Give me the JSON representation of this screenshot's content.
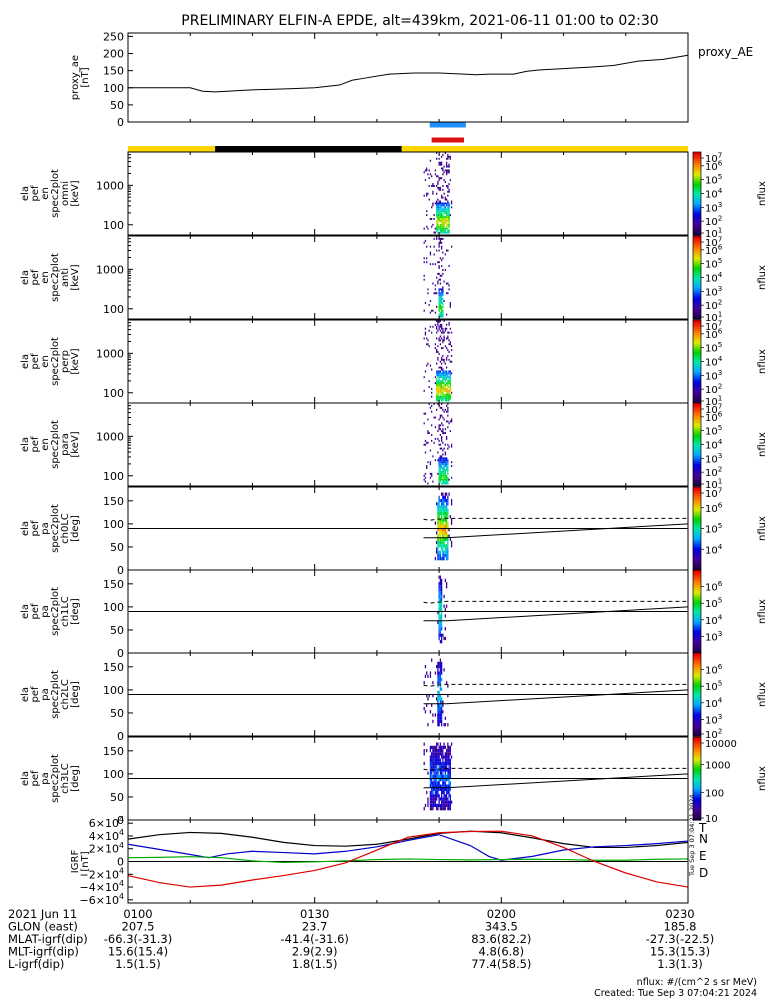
{
  "title": "PRELIMINARY ELFIN-A EPDE, alt=439km, 2021-06-11 01:00 to 02:30",
  "colors": {
    "background": "#ffffff",
    "axis": "#000000",
    "sunlight_bar": "#ffd700",
    "shadow_bar": "#000000",
    "science_zone_blue": "#1e90ff",
    "science_zone_red": "#dd1111",
    "igrf_total": "#000000",
    "igrf_north": "#0000cc",
    "igrf_east": "#00aa00",
    "igrf_down": "#dd0000"
  },
  "chart_data": [
    {
      "type": "line",
      "ylabel": [
        "proxy_ae",
        "[nT]"
      ],
      "ylim": [
        0,
        260
      ],
      "yticks": [
        0,
        50,
        100,
        150,
        200,
        250
      ],
      "legend": "proxy_AE",
      "series": [
        {
          "name": "proxy_AE",
          "x": [
            0,
            5,
            8,
            10,
            12,
            14,
            16,
            18,
            20,
            22,
            24,
            26,
            30,
            34,
            36,
            38,
            42,
            46,
            50,
            54,
            56,
            58,
            62,
            64,
            66,
            70,
            72,
            74,
            78,
            82,
            86,
            90
          ],
          "y": [
            100,
            100,
            100,
            100,
            90,
            88,
            90,
            92,
            94,
            95,
            96,
            97,
            100,
            108,
            122,
            128,
            140,
            143,
            143,
            140,
            138,
            140,
            140,
            148,
            152,
            156,
            158,
            160,
            165,
            178,
            183,
            195
          ]
        }
      ]
    },
    {
      "type": "heatmap",
      "ylabel": [
        "ela",
        "pef",
        "en",
        "spec2plot",
        "omni",
        "[keV]"
      ],
      "yscale": "log",
      "ylim": [
        55,
        7000
      ],
      "yticks": [
        100,
        1000
      ],
      "colorbar": {
        "label": "nflux",
        "scale": "log",
        "range": [
          10,
          10000000
        ],
        "tick_labels": [
          [
            "10",
            "1"
          ],
          [
            "10",
            "2"
          ],
          [
            "10",
            "3"
          ],
          [
            "10",
            "4"
          ],
          [
            "10",
            "5"
          ],
          [
            "10",
            "6"
          ],
          [
            "10",
            "7"
          ]
        ]
      },
      "activity_window_min": [
        47.5,
        52.0
      ],
      "core": {
        "x0": 49.5,
        "x1": 51.6,
        "energy_peak_keV": 110,
        "level": 0.7
      }
    },
    {
      "type": "heatmap",
      "ylabel": [
        "ela",
        "pef",
        "en",
        "spec2plot",
        "anti",
        "[keV]"
      ],
      "yscale": "log",
      "ylim": [
        55,
        7000
      ],
      "yticks": [
        100,
        1000
      ],
      "colorbar": {
        "label": "nflux",
        "scale": "log",
        "range": [
          10,
          10000000
        ],
        "tick_labels": [
          [
            "10",
            "1"
          ],
          [
            "10",
            "2"
          ],
          [
            "10",
            "3"
          ],
          [
            "10",
            "4"
          ],
          [
            "10",
            "5"
          ],
          [
            "10",
            "6"
          ],
          [
            "10",
            "7"
          ]
        ]
      },
      "activity_window_min": [
        47.5,
        52.0
      ],
      "core": {
        "x0": 49.8,
        "x1": 50.6,
        "energy_peak_keV": 100,
        "level": 0.55
      }
    },
    {
      "type": "heatmap",
      "ylabel": [
        "ela",
        "pef",
        "en",
        "spec2plot",
        "perp",
        "[keV]"
      ],
      "yscale": "log",
      "ylim": [
        55,
        7000
      ],
      "yticks": [
        100,
        1000
      ],
      "colorbar": {
        "label": "nflux",
        "scale": "log",
        "range": [
          10,
          10000000
        ],
        "tick_labels": [
          [
            "10",
            "1"
          ],
          [
            "10",
            "2"
          ],
          [
            "10",
            "3"
          ],
          [
            "10",
            "4"
          ],
          [
            "10",
            "5"
          ],
          [
            "10",
            "6"
          ],
          [
            "10",
            "7"
          ]
        ]
      },
      "activity_window_min": [
        47.5,
        52.0
      ],
      "core": {
        "x0": 49.5,
        "x1": 51.8,
        "energy_peak_keV": 110,
        "level": 0.72
      }
    },
    {
      "type": "heatmap",
      "ylabel": [
        "ela",
        "pef",
        "en",
        "spec2plot",
        "para",
        "[keV]"
      ],
      "yscale": "log",
      "ylim": [
        55,
        7000
      ],
      "yticks": [
        100,
        1000
      ],
      "colorbar": {
        "label": "nflux",
        "scale": "log",
        "range": [
          10,
          10000000
        ],
        "tick_labels": [
          [
            "10",
            "1"
          ],
          [
            "10",
            "2"
          ],
          [
            "10",
            "3"
          ],
          [
            "10",
            "4"
          ],
          [
            "10",
            "5"
          ],
          [
            "10",
            "6"
          ],
          [
            "10",
            "7"
          ]
        ]
      },
      "activity_window_min": [
        47.5,
        52.0
      ],
      "core": {
        "x0": 49.8,
        "x1": 51.5,
        "energy_peak_keV": 90,
        "level": 0.55
      }
    },
    {
      "type": "heatmap",
      "ylabel": [
        "ela",
        "pef",
        "pa",
        "spec2plot",
        "ch0LC",
        "[deg]"
      ],
      "yscale": "linear",
      "ylim": [
        0,
        180
      ],
      "yticks": [
        0,
        50,
        100,
        150
      ],
      "colorbar": {
        "label": "nflux",
        "scale": "log",
        "range": [
          1000,
          10000000
        ],
        "tick_labels": [
          [
            "10",
            "4"
          ],
          [
            "10",
            "5"
          ],
          [
            "10",
            "6"
          ],
          [
            "10",
            "7"
          ]
        ]
      },
      "activity_window_min": [
        49.3,
        52.0
      ],
      "core": {
        "x0": 49.6,
        "x1": 51.5,
        "level": 0.75
      },
      "lc_solid": {
        "x": [
          47.5,
          50.0,
          51.2,
          90
        ],
        "y": [
          70,
          70,
          70,
          100
        ]
      },
      "lc_dashed": {
        "x": [
          47.5,
          48.5,
          51.0,
          90
        ],
        "y": [
          110,
          108,
          112,
          112
        ]
      }
    },
    {
      "type": "heatmap",
      "ylabel": [
        "ela",
        "pef",
        "pa",
        "spec2plot",
        "ch1LC",
        "[deg]"
      ],
      "yscale": "linear",
      "ylim": [
        0,
        180
      ],
      "yticks": [
        0,
        50,
        100,
        150
      ],
      "colorbar": {
        "label": "nflux",
        "scale": "log",
        "range": [
          100,
          10000000
        ],
        "tick_labels": [
          [
            "10",
            "3"
          ],
          [
            "10",
            "4"
          ],
          [
            "10",
            "5"
          ],
          [
            "10",
            "6"
          ]
        ]
      },
      "activity_window_min": [
        49.5,
        51.2
      ],
      "core": {
        "x0": 49.8,
        "x1": 50.5,
        "level": 0.45
      },
      "lc_solid": {
        "x": [
          47.5,
          50.0,
          51.2,
          90
        ],
        "y": [
          70,
          70,
          70,
          100
        ]
      },
      "lc_dashed": {
        "x": [
          47.5,
          48.5,
          51.0,
          90
        ],
        "y": [
          110,
          108,
          112,
          112
        ]
      }
    },
    {
      "type": "heatmap",
      "ylabel": [
        "ela",
        "pef",
        "pa",
        "spec2plot",
        "ch2LC",
        "[deg]"
      ],
      "yscale": "linear",
      "ylim": [
        0,
        180
      ],
      "yticks": [
        0,
        50,
        100,
        150
      ],
      "colorbar": {
        "label": "nflux",
        "scale": "log",
        "range": [
          100,
          10000000
        ],
        "tick_labels": [
          [
            "10",
            "2"
          ],
          [
            "10",
            "3"
          ],
          [
            "10",
            "4"
          ],
          [
            "10",
            "5"
          ],
          [
            "10",
            "6"
          ]
        ]
      },
      "activity_window_min": [
        47.5,
        51.5
      ],
      "core": {
        "x0": 49.7,
        "x1": 50.4,
        "level": 0.35
      },
      "lc_solid": {
        "x": [
          47.5,
          50.0,
          51.2,
          90
        ],
        "y": [
          70,
          70,
          70,
          100
        ]
      },
      "lc_dashed": {
        "x": [
          47.5,
          48.5,
          51.0,
          90
        ],
        "y": [
          110,
          108,
          112,
          112
        ]
      }
    },
    {
      "type": "heatmap",
      "ylabel": [
        "ela",
        "pef",
        "pa",
        "spec2plot",
        "ch3LC",
        "[deg]"
      ],
      "yscale": "linear",
      "ylim": [
        0,
        180
      ],
      "yticks": [
        0,
        50,
        100,
        150
      ],
      "colorbar": {
        "label": "nflux",
        "scale": "log",
        "range": [
          10,
          10000
        ],
        "tick_labels": [
          [
            "10000",
            ""
          ],
          [
            "1000",
            ""
          ],
          [
            "100",
            ""
          ],
          [
            "10",
            ""
          ]
        ]
      },
      "activity_window_min": [
        47.5,
        52.0
      ],
      "core": {
        "x0": 48.5,
        "x1": 51.8,
        "level": 0.25
      },
      "lc_solid": {
        "x": [
          47.5,
          50.0,
          51.2,
          90
        ],
        "y": [
          70,
          70,
          70,
          100
        ]
      },
      "lc_dashed": {
        "x": [
          47.5,
          48.5,
          51.0,
          90
        ],
        "y": [
          110,
          108,
          112,
          112
        ]
      }
    },
    {
      "type": "line",
      "ylabel": [
        "IGRF",
        "[nT]"
      ],
      "ylim": [
        -65000,
        65000
      ],
      "ytick_labels": [
        {
          "v": 60000,
          "m": "6",
          "e": "4",
          "s": ""
        },
        {
          "v": 40000,
          "m": "4",
          "e": "4",
          "s": ""
        },
        {
          "v": 20000,
          "m": "2",
          "e": "4",
          "s": ""
        },
        {
          "v": 0,
          "m": "0",
          "e": "",
          "s": ""
        },
        {
          "v": -20000,
          "m": "2",
          "e": "4",
          "s": "−"
        },
        {
          "v": -40000,
          "m": "4",
          "e": "4",
          "s": "−"
        },
        {
          "v": -60000,
          "m": "6",
          "e": "4",
          "s": "−"
        }
      ],
      "series": [
        {
          "name": "T",
          "color": "#000000",
          "x": [
            0,
            5,
            10,
            15,
            20,
            25,
            30,
            35,
            40,
            45,
            50,
            55,
            60,
            65,
            70,
            75,
            80,
            85,
            90
          ],
          "y": [
            35000,
            42000,
            45500,
            44000,
            38000,
            30000,
            25000,
            24000,
            27000,
            35000,
            44000,
            47500,
            45000,
            37000,
            28000,
            22000,
            22000,
            25000,
            30000
          ]
        },
        {
          "name": "N",
          "color": "#0000cc",
          "x": [
            0,
            5,
            10,
            13,
            16,
            20,
            25,
            30,
            35,
            40,
            45,
            50,
            55,
            58,
            60,
            65,
            70,
            75,
            80,
            85,
            90
          ],
          "y": [
            27000,
            19000,
            11000,
            6000,
            12000,
            16000,
            14000,
            12000,
            16000,
            23000,
            33000,
            42000,
            25000,
            8000,
            2000,
            8000,
            18000,
            23000,
            25000,
            28000,
            32000
          ]
        },
        {
          "name": "E",
          "color": "#00aa00",
          "x": [
            0,
            5,
            10,
            15,
            20,
            25,
            30,
            35,
            40,
            45,
            50,
            55,
            60,
            65,
            70,
            75,
            80,
            85,
            90
          ],
          "y": [
            6000,
            6500,
            7500,
            6000,
            1000,
            -1500,
            -500,
            1000,
            3000,
            4000,
            3000,
            2500,
            3000,
            3500,
            3000,
            2000,
            2000,
            3500,
            4000
          ]
        },
        {
          "name": "D",
          "color": "#dd0000",
          "x": [
            0,
            5,
            10,
            15,
            20,
            25,
            30,
            35,
            40,
            45,
            50,
            55,
            60,
            65,
            70,
            75,
            80,
            85,
            90
          ],
          "y": [
            -22000,
            -33000,
            -40000,
            -37000,
            -29000,
            -22000,
            -14000,
            -2000,
            18000,
            38000,
            45000,
            47000,
            47500,
            40000,
            22000,
            0,
            -18000,
            -32000,
            -40000
          ]
        }
      ]
    }
  ],
  "time_labels": {
    "row_labels": [
      "2021 Jun 11",
      "GLON (east)",
      "MLAT-igrf(dip)",
      "MLT-igrf(dip)",
      "L-igrf(dip)"
    ],
    "ticks": [
      {
        "minute": 0,
        "values": [
          "0100",
          "207.5",
          "-66.3(-31.3)",
          "15.6(15.4)",
          "1.5(1.5)"
        ]
      },
      {
        "minute": 30,
        "values": [
          "0130",
          "23.7",
          "-41.4(-31.6)",
          "2.9(2.9)",
          "1.8(1.5)"
        ]
      },
      {
        "minute": 60,
        "values": [
          "0200",
          "343.5",
          "83.6(82.2)",
          "4.8(6.8)",
          "77.4(58.5)"
        ]
      },
      {
        "minute": 90,
        "values": [
          "0230",
          "185.8",
          "-27.3(-22.5)",
          "15.3(15.3)",
          "1.3(1.3)"
        ]
      }
    ]
  },
  "footer": {
    "units": "nflux: #/(cm^2 s sr MeV)",
    "created": "Created: Tue Sep  3 07:04:21 2024",
    "side_stamp": "Tue Sep  3 07:04:21 2024"
  },
  "sunlight_bar": [
    {
      "from_min": 0,
      "to_min": 14,
      "state": "sunlight"
    },
    {
      "from_min": 14,
      "to_min": 44,
      "state": "shadow"
    },
    {
      "from_min": 44,
      "to_min": 90,
      "state": "sunlight"
    }
  ],
  "science_zones": [
    {
      "from_min": 48.5,
      "to_min": 54.3,
      "color": "blue"
    },
    {
      "from_min": 48.8,
      "to_min": 54.0,
      "color": "red"
    }
  ]
}
